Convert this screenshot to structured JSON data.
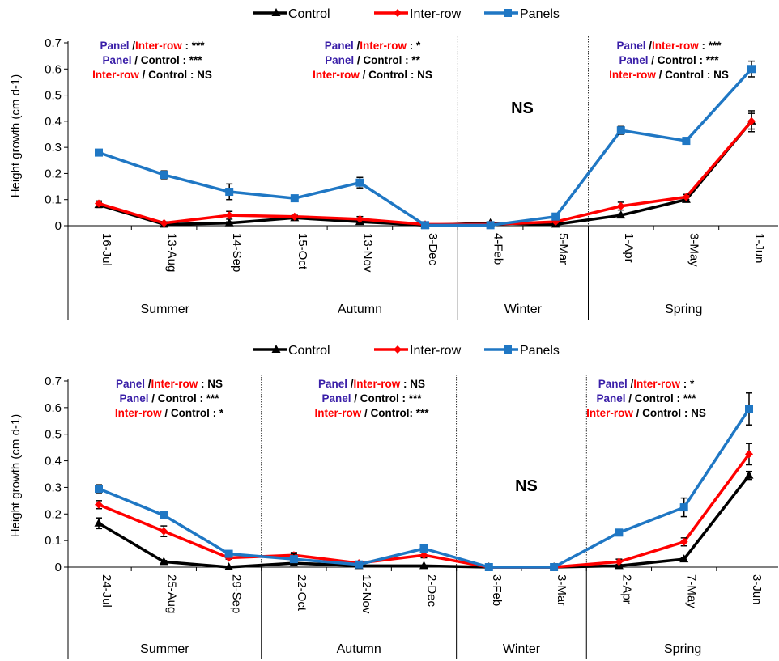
{
  "colors": {
    "control": "#000000",
    "inter_row": "#ff0000",
    "panels": "#1f77c4",
    "panel_label": "#3a1fa8",
    "inter_row_label": "#ff0000",
    "control_label": "#000000"
  },
  "chart_data": [
    {
      "type": "line",
      "ylabel": "Height growth (cm d-1)",
      "ylim": [
        0,
        0.7
      ],
      "yticks": [
        "0",
        "0.1",
        "0.2",
        "0.3",
        "0.4",
        "0.5",
        "0.6",
        "0.7"
      ],
      "categories": [
        "16-Jul",
        "13-Aug",
        "14-Sep",
        "15-Oct",
        "13-Nov",
        "3-Dec",
        "4-Feb",
        "5-Mar",
        "1-Apr",
        "3-May",
        "1-Jun"
      ],
      "legend": [
        "Control",
        "Inter-row",
        "Panels"
      ],
      "legend_position": "top",
      "series": [
        {
          "name": "Control",
          "marker": "triangle",
          "values": [
            0.08,
            0.005,
            0.01,
            0.03,
            0.015,
            0.002,
            0.01,
            0.005,
            0.04,
            0.1,
            0.4
          ],
          "errors": [
            0.01,
            0.005,
            0.005,
            0.005,
            0.005,
            0.002,
            0.003,
            0.003,
            0.005,
            0.01,
            0.03
          ]
        },
        {
          "name": "Inter-row",
          "marker": "diamond",
          "values": [
            0.085,
            0.01,
            0.04,
            0.035,
            0.025,
            0.005,
            0.005,
            0.015,
            0.075,
            0.11,
            0.4
          ],
          "errors": [
            0.01,
            0.005,
            0.015,
            0.005,
            0.01,
            0.003,
            0.003,
            0.005,
            0.015,
            0.01,
            0.04
          ]
        },
        {
          "name": "Panels",
          "marker": "square",
          "values": [
            0.28,
            0.195,
            0.13,
            0.105,
            0.165,
            0.002,
            0.002,
            0.035,
            0.365,
            0.325,
            0.6
          ],
          "errors": [
            0.012,
            0.015,
            0.03,
            0.01,
            0.02,
            0.002,
            0.002,
            0.008,
            0.015,
            0.01,
            0.03
          ]
        }
      ],
      "seasons": [
        {
          "label": "Summer",
          "from": 0,
          "to": 2
        },
        {
          "label": "Autumn",
          "from": 3,
          "to": 5
        },
        {
          "label": "Winter",
          "from": 6,
          "to": 7
        },
        {
          "label": "Spring",
          "from": 8,
          "to": 10
        }
      ],
      "season_dividers_after_index": [
        2.5,
        5.5,
        7.5
      ],
      "annotations": [
        {
          "lines": [
            [
              {
                "t": "Panel ",
                "c": "panel_label"
              },
              {
                "t": "/",
                "c": "control_label"
              },
              {
                "t": "Inter-row",
                "c": "inter_row_label"
              },
              {
                "t": " : ***",
                "c": "control_label"
              }
            ],
            [
              {
                "t": "Panel",
                "c": "panel_label"
              },
              {
                "t": " / Control : ***",
                "c": "control_label"
              }
            ],
            [
              {
                "t": "Inter-row",
                "c": "inter_row_label"
              },
              {
                "t": " / Control : NS",
                "c": "control_label"
              }
            ]
          ]
        },
        {
          "lines": [
            [
              {
                "t": "Panel ",
                "c": "panel_label"
              },
              {
                "t": "/",
                "c": "control_label"
              },
              {
                "t": "Inter-row",
                "c": "inter_row_label"
              },
              {
                "t": " : *",
                "c": "control_label"
              }
            ],
            [
              {
                "t": "Panel",
                "c": "panel_label"
              },
              {
                "t": " / Control : **",
                "c": "control_label"
              }
            ],
            [
              {
                "t": "Inter-row",
                "c": "inter_row_label"
              },
              {
                "t": " / Control : NS",
                "c": "control_label"
              }
            ]
          ]
        },
        {
          "lines": [
            [
              {
                "t": "Panel ",
                "c": "panel_label"
              },
              {
                "t": "/",
                "c": "control_label"
              },
              {
                "t": "Inter-row",
                "c": "inter_row_label"
              },
              {
                "t": " : ***",
                "c": "control_label"
              }
            ],
            [
              {
                "t": "Panel",
                "c": "panel_label"
              },
              {
                "t": " / Control : ***",
                "c": "control_label"
              }
            ],
            [
              {
                "t": "Inter-row",
                "c": "inter_row_label"
              },
              {
                "t": " / Control : NS",
                "c": "control_label"
              }
            ]
          ]
        }
      ],
      "ns_label": "NS"
    },
    {
      "type": "line",
      "ylabel": "Height growth (cm d-1)",
      "ylim": [
        0,
        0.7
      ],
      "yticks": [
        "0",
        "0.1",
        "0.2",
        "0.3",
        "0.4",
        "0.5",
        "0.6",
        "0.7"
      ],
      "categories": [
        "24-Jul",
        "25-Aug",
        "29-Sep",
        "22-Oct",
        "12-Nov",
        "2-Dec",
        "3-Feb",
        "3-Mar",
        "2-Apr",
        "7-May",
        "3-Jun"
      ],
      "legend": [
        "Control",
        "Inter-row",
        "Panels"
      ],
      "legend_position": "top",
      "series": [
        {
          "name": "Control",
          "marker": "triangle",
          "values": [
            0.165,
            0.02,
            0.0,
            0.015,
            0.005,
            0.005,
            0.0,
            0.0,
            0.005,
            0.03,
            0.345
          ],
          "errors": [
            0.02,
            0.005,
            0.002,
            0.005,
            0.003,
            0.003,
            0.001,
            0.001,
            0.003,
            0.005,
            0.015
          ]
        },
        {
          "name": "Inter-row",
          "marker": "diamond",
          "values": [
            0.235,
            0.135,
            0.035,
            0.045,
            0.015,
            0.045,
            0.0,
            0.0,
            0.02,
            0.095,
            0.425
          ],
          "errors": [
            0.015,
            0.02,
            0.005,
            0.01,
            0.005,
            0.01,
            0.001,
            0.001,
            0.01,
            0.015,
            0.04
          ]
        },
        {
          "name": "Panels",
          "marker": "square",
          "values": [
            0.295,
            0.195,
            0.05,
            0.03,
            0.01,
            0.07,
            0.0,
            0.0,
            0.13,
            0.225,
            0.595
          ],
          "errors": [
            0.015,
            0.01,
            0.005,
            0.02,
            0.005,
            0.01,
            0.001,
            0.001,
            0.008,
            0.035,
            0.06
          ]
        }
      ],
      "seasons": [
        {
          "label": "Summer",
          "from": 0,
          "to": 2
        },
        {
          "label": "Autumn",
          "from": 3,
          "to": 5
        },
        {
          "label": "Winter",
          "from": 6,
          "to": 7
        },
        {
          "label": "Spring",
          "from": 8,
          "to": 10
        }
      ],
      "season_dividers_after_index": [
        2.5,
        5.5,
        7.5
      ],
      "annotations": [
        {
          "lines": [
            [
              {
                "t": "Panel ",
                "c": "panel_label"
              },
              {
                "t": "/",
                "c": "control_label"
              },
              {
                "t": "Inter-row",
                "c": "inter_row_label"
              },
              {
                "t": " : NS",
                "c": "control_label"
              }
            ],
            [
              {
                "t": "Panel",
                "c": "panel_label"
              },
              {
                "t": " / Control : ***",
                "c": "control_label"
              }
            ],
            [
              {
                "t": "Inter-row",
                "c": "inter_row_label"
              },
              {
                "t": " / Control : *",
                "c": "control_label"
              }
            ]
          ]
        },
        {
          "lines": [
            [
              {
                "t": "Panel ",
                "c": "panel_label"
              },
              {
                "t": "/",
                "c": "control_label"
              },
              {
                "t": "Inter-row",
                "c": "inter_row_label"
              },
              {
                "t": " : NS",
                "c": "control_label"
              }
            ],
            [
              {
                "t": "Panel",
                "c": "panel_label"
              },
              {
                "t": " / Control : ***",
                "c": "control_label"
              }
            ],
            [
              {
                "t": "Inter-row",
                "c": "inter_row_label"
              },
              {
                "t": " / Control: ***",
                "c": "control_label"
              }
            ]
          ]
        },
        {
          "lines": [
            [
              {
                "t": "Panel ",
                "c": "panel_label"
              },
              {
                "t": "/",
                "c": "control_label"
              },
              {
                "t": "Inter-row",
                "c": "inter_row_label"
              },
              {
                "t": " : *",
                "c": "control_label"
              }
            ],
            [
              {
                "t": "Panel",
                "c": "panel_label"
              },
              {
                "t": " / Control : ***",
                "c": "control_label"
              }
            ],
            [
              {
                "t": "Inter-row",
                "c": "inter_row_label"
              },
              {
                "t": " / Control : NS",
                "c": "control_label"
              }
            ]
          ]
        }
      ],
      "ns_label": "NS"
    }
  ]
}
